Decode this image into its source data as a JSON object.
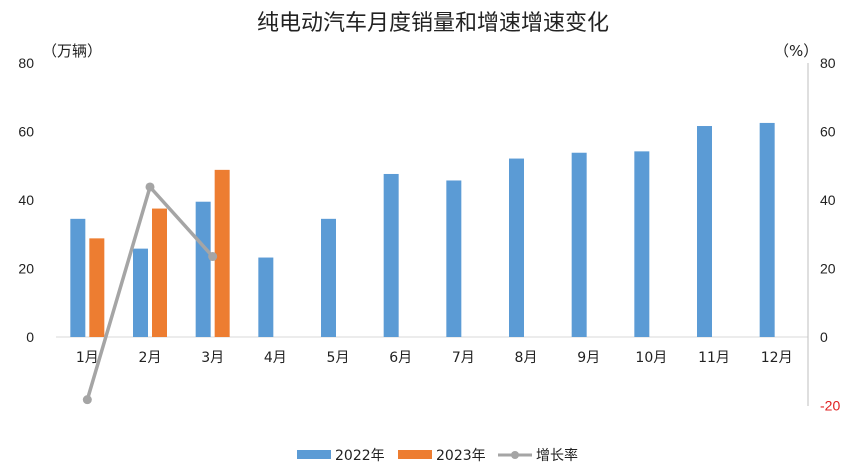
{
  "chart_data": {
    "type": "bar",
    "title": "纯电动汽车月度销量和增速增速变化",
    "left_unit": "（万辆）",
    "right_unit": "（%）",
    "categories": [
      "1月",
      "2月",
      "3月",
      "4月",
      "5月",
      "6月",
      "7月",
      "8月",
      "9月",
      "10月",
      "11月",
      "12月"
    ],
    "series": [
      {
        "name": "2022年",
        "kind": "bar",
        "axis": "left",
        "color": "#5b9bd5",
        "values": [
          34.5,
          25.8,
          39.5,
          23.2,
          34.5,
          47.6,
          45.7,
          52.1,
          53.8,
          54.2,
          61.6,
          62.5
        ]
      },
      {
        "name": "2023年",
        "kind": "bar",
        "axis": "left",
        "color": "#ed7d31",
        "values": [
          28.8,
          37.5,
          48.8,
          null,
          null,
          null,
          null,
          null,
          null,
          null,
          null,
          null
        ]
      },
      {
        "name": "增长率",
        "kind": "line",
        "axis": "right",
        "color": "#a5a5a5",
        "values": [
          -18.3,
          43.8,
          23.5,
          null,
          null,
          null,
          null,
          null,
          null,
          null,
          null,
          null
        ]
      }
    ],
    "left_axis": {
      "min": 0,
      "max": 80,
      "ticks": [
        "0",
        "20",
        "40",
        "60",
        "80"
      ]
    },
    "right_axis": {
      "min": -20,
      "max": 80,
      "ticks": [
        "-20",
        "0",
        "20",
        "40",
        "60",
        "80"
      ]
    },
    "legend_position": "bottom",
    "grid": false
  }
}
